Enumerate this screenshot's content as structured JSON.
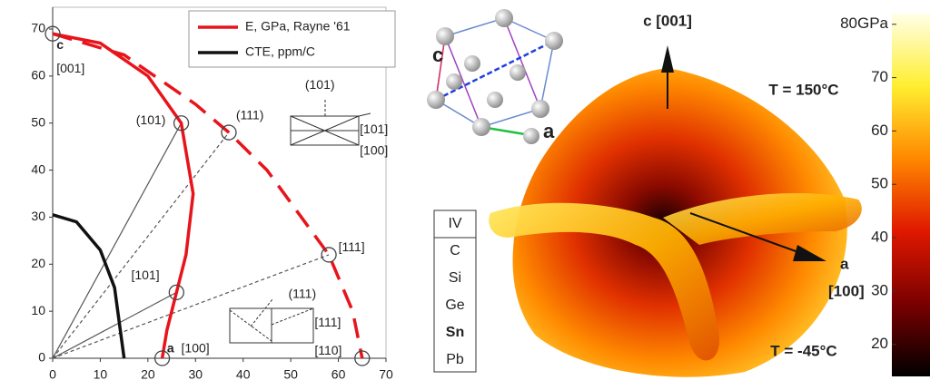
{
  "chart_data": [
    {
      "type": "line",
      "xlim": [
        0,
        70
      ],
      "ylim": [
        0,
        70
      ],
      "xticks": [
        0,
        10,
        20,
        30,
        40,
        50,
        60,
        70
      ],
      "yticks": [
        0,
        10,
        20,
        30,
        40,
        50,
        60,
        70
      ],
      "series": [
        {
          "name": "E, GPa, Rayne '61",
          "color": "#e8141b",
          "dash": false,
          "x": [
            0,
            10,
            20,
            27,
            29.5,
            28,
            26,
            24,
            23
          ],
          "values": [
            69,
            67,
            60,
            50,
            35,
            22,
            14,
            6,
            0
          ]
        },
        {
          "color": "#e8141b",
          "dash": true,
          "x": [
            0,
            15,
            30,
            37,
            45,
            58,
            63,
            65
          ],
          "values": [
            69,
            64.5,
            54,
            48,
            40,
            22,
            10,
            0
          ]
        },
        {
          "name": "CTE, ppm/C",
          "color": "#111111",
          "dash": false,
          "x": [
            0,
            5,
            10,
            13,
            15
          ],
          "values": [
            30.5,
            29,
            23,
            15,
            0
          ]
        }
      ],
      "rays": [
        {
          "x": 27,
          "y": 50,
          "dash": false
        },
        {
          "x": 26,
          "y": 14,
          "dash": false
        },
        {
          "x": 37,
          "y": 48,
          "dash": true
        },
        {
          "x": 58,
          "y": 22,
          "dash": true
        }
      ],
      "markers": {
        "x": [
          0,
          27,
          37,
          58,
          26,
          23,
          65
        ],
        "y": [
          69,
          50,
          48,
          22,
          14,
          0,
          0
        ]
      },
      "annotations": [
        {
          "text": "c",
          "x": 0.8,
          "y": 66.5,
          "color": "#2233cc"
        },
        {
          "text": "[001]",
          "x": 0.8,
          "y": 61.5,
          "color": "#222222"
        },
        {
          "text": "(101)",
          "x": 17.5,
          "y": 50.5,
          "color": "#222222"
        },
        {
          "text": "(111)",
          "x": 38.5,
          "y": 51.5,
          "color": "#222222"
        },
        {
          "text": "[111]",
          "x": 60,
          "y": 23.5,
          "color": "#222222"
        },
        {
          "text": "[101]",
          "x": 16.5,
          "y": 17.5,
          "color": "#222222"
        },
        {
          "text": "a",
          "x": 24,
          "y": 2,
          "color": "#2233cc"
        },
        {
          "text": "[100]",
          "x": 27,
          "y": 2,
          "color": "#222222"
        },
        {
          "text": "(101)",
          "x": 53,
          "y": 58,
          "color": "#222222"
        },
        {
          "text": "[101]",
          "x": 64.5,
          "y": 48.5,
          "color": "#222222"
        },
        {
          "text": "[100]",
          "x": 64.5,
          "y": 44,
          "color": "#222222"
        },
        {
          "text": "(111)",
          "x": 49.5,
          "y": 13.5,
          "color": "#222222"
        },
        {
          "text": "[111]",
          "x": 55,
          "y": 7.5,
          "color": "#222222"
        },
        {
          "text": "[110]",
          "x": 55,
          "y": 1.5,
          "color": "#222222"
        }
      ]
    },
    {
      "type": "colorbar",
      "clim": [
        14,
        82
      ],
      "ticks": [
        20,
        30,
        40,
        50,
        60,
        70,
        {
          "value": 80,
          "label": "80GPa"
        }
      ],
      "colors": [
        "#000000",
        "#7a0000",
        "#e01800",
        "#ff8800",
        "#ffee30",
        "#ffffe8"
      ],
      "labels": {
        "top_axis": "c [001]",
        "side_axis": "a",
        "side_axis_dir": "[100]",
        "t_high": "T = 150°C",
        "t_low": "T = -45°C"
      },
      "crystal": {
        "c": "c",
        "a": "a"
      },
      "table": [
        {
          "text": "IV",
          "color": "#111111"
        },
        {
          "text": "C",
          "color": "#111111"
        },
        {
          "text": "Si",
          "color": "#111111"
        },
        {
          "text": "Ge",
          "color": "#111111"
        },
        {
          "text": "Sn",
          "color": "#e8141b"
        },
        {
          "text": "Pb",
          "color": "#111111"
        }
      ]
    }
  ]
}
